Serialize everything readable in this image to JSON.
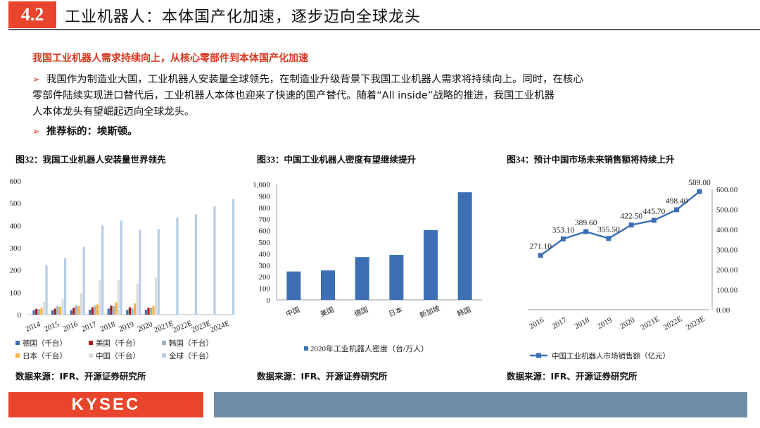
{
  "header": {
    "section": "4.2",
    "title": "工业机器人：本体国产化加速，逐步迈向全球龙头"
  },
  "subheading": "我国工业机器人需求持续向上，从核心零部件到本体国产化加速",
  "bullets": [
    {
      "lines": [
        "我国作为制造业大国，工业机器人安装量全球领先，在制造业升级背景下我国工业机器人需求将持续向上。同时，在核心",
        "零部件陆续实现进口替代后，工业机器人本体也迎来了快速的国产替代。随着“All inside”战略的推进，我国工业机器",
        "人本体龙头有望崛起迈向全球龙头。"
      ]
    },
    {
      "text": "推荐标的：埃斯顿。"
    }
  ],
  "figures": [
    {
      "num": "图32",
      "title": "：我国工业机器人安装量世界领先",
      "source": "数据来源：IFR、开源证券研究所"
    },
    {
      "num": "图33",
      "title": "：中国工业机器人密度有望继续提升",
      "source": "数据来源：IFR、开源证券研究所"
    },
    {
      "num": "图34",
      "title": "：预计中国市场未来销售额将持续上升",
      "source": "数据来源：IFR、开源证券研究所"
    }
  ],
  "chart_data": [
    {
      "type": "bar",
      "categories": [
        "2014",
        "2015",
        "2016",
        "2017",
        "2018",
        "2019",
        "2020",
        "2021E",
        "2022E",
        "2023E",
        "2024E"
      ],
      "ylim": [
        0,
        600
      ],
      "yticks": [
        0,
        100,
        200,
        300,
        400,
        500,
        600
      ],
      "series": [
        {
          "name": "德国（千台）",
          "color": "#3d6fb5",
          "values": [
            20,
            20,
            20,
            22,
            27,
            21,
            22,
            null,
            null,
            null,
            null
          ]
        },
        {
          "name": "美国（千台）",
          "color": "#a61c1c",
          "values": [
            26,
            27,
            31,
            33,
            40,
            33,
            31,
            null,
            null,
            null,
            null
          ]
        },
        {
          "name": "韩国（千台）",
          "color": "#9fb0c3",
          "values": [
            25,
            38,
            41,
            40,
            38,
            28,
            31,
            null,
            null,
            null,
            null
          ]
        },
        {
          "name": "日本（千台）",
          "color": "#f5b041",
          "values": [
            29,
            35,
            39,
            46,
            55,
            50,
            39,
            null,
            null,
            null,
            null
          ]
        },
        {
          "name": "中国（千台）",
          "color": "#dcdcdc",
          "values": [
            57,
            69,
            97,
            156,
            154,
            140,
            168,
            null,
            null,
            null,
            null
          ]
        },
        {
          "name": "全球（千台）",
          "color": "#b7cde6",
          "values": [
            221,
            254,
            304,
            400,
            422,
            381,
            384,
            435,
            450,
            485,
            518
          ]
        }
      ]
    },
    {
      "type": "bar",
      "categories": [
        "中国",
        "美国",
        "德国",
        "日本",
        "新加坡",
        "韩国"
      ],
      "values": [
        246,
        255,
        371,
        390,
        605,
        932
      ],
      "ylim": [
        0,
        1000
      ],
      "yticks": [
        "0",
        "100",
        "200",
        "300",
        "400",
        "500",
        "600",
        "700",
        "800",
        "900",
        "1,000"
      ],
      "series": [
        {
          "name": "2020年工业机器人密度（台/万人）",
          "color": "#3d6fb5"
        }
      ]
    },
    {
      "type": "line",
      "categories": [
        "2016",
        "2017",
        "2018",
        "2019",
        "2020",
        "2021E",
        "2022E",
        "2023E"
      ],
      "values": [
        271.1,
        353.1,
        389.6,
        355.5,
        422.5,
        445.7,
        498.4,
        589.0
      ],
      "labels": [
        "271.10",
        "353.10",
        "389.60",
        "355.50",
        "422.50",
        "445.70",
        "498.40",
        "589.00"
      ],
      "ylim": [
        0,
        600
      ],
      "yticks": [
        "0.00",
        "100.00",
        "200.00",
        "300.00",
        "400.00",
        "500.00",
        "600.00"
      ],
      "series": [
        {
          "name": "中国工业机器人市场销售额（亿元）",
          "color": "#3d6fb5"
        }
      ]
    }
  ],
  "footer": {
    "logo": "KYSEC"
  }
}
